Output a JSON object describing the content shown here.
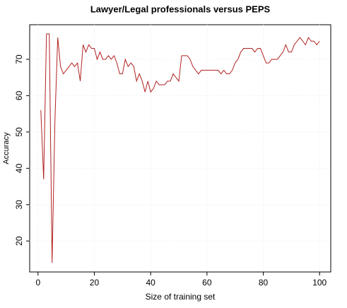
{
  "chart_data": {
    "type": "line",
    "title": "Lawyer/Legal professionals versus PEPS",
    "xlabel": "Size of training set",
    "ylabel": "Accuracy",
    "x": [
      1,
      2,
      3,
      4,
      5,
      6,
      7,
      8,
      9,
      10,
      11,
      12,
      13,
      14,
      15,
      16,
      17,
      18,
      19,
      20,
      21,
      22,
      23,
      24,
      25,
      26,
      27,
      28,
      29,
      30,
      31,
      32,
      33,
      34,
      35,
      36,
      37,
      38,
      39,
      40,
      41,
      42,
      43,
      44,
      45,
      46,
      47,
      48,
      49,
      50,
      51,
      52,
      53,
      54,
      55,
      56,
      57,
      58,
      59,
      60,
      61,
      62,
      63,
      64,
      65,
      66,
      67,
      68,
      69,
      70,
      71,
      72,
      73,
      74,
      75,
      76,
      77,
      78,
      79,
      80,
      81,
      82,
      83,
      84,
      85,
      86,
      87,
      88,
      89,
      90,
      91,
      92,
      93,
      94,
      95,
      96,
      97,
      98,
      99,
      100
    ],
    "series": [
      {
        "color": "#b22222",
        "values": [
          56,
          37,
          77,
          77,
          14,
          53,
          76,
          68,
          66,
          67,
          68,
          69,
          68,
          69,
          64,
          74,
          72,
          74,
          73,
          73,
          70,
          72,
          70,
          70,
          71,
          70,
          71,
          69,
          66,
          66,
          70,
          68,
          69,
          68,
          64,
          66,
          64,
          61,
          64,
          61,
          62,
          64,
          63,
          63,
          63,
          64,
          64,
          66,
          65,
          64,
          71,
          71,
          71,
          70,
          68,
          67,
          66,
          67,
          67,
          67,
          67,
          67,
          67,
          67,
          66,
          67,
          66,
          66,
          67,
          69,
          70,
          72,
          73,
          73,
          73,
          73,
          72,
          73,
          73,
          71,
          69,
          69,
          70,
          70,
          70,
          71,
          72,
          74,
          72,
          72,
          74,
          75,
          76,
          75,
          74,
          76,
          75,
          75,
          74,
          75
        ]
      }
    ],
    "xlim": [
      -2.96,
      103.96
    ],
    "ylim": [
      11.48,
      79.52
    ],
    "xticks": [
      0,
      20,
      40,
      60,
      80,
      100
    ],
    "yticks": [
      20,
      30,
      40,
      50,
      60,
      70
    ],
    "grid": true
  }
}
